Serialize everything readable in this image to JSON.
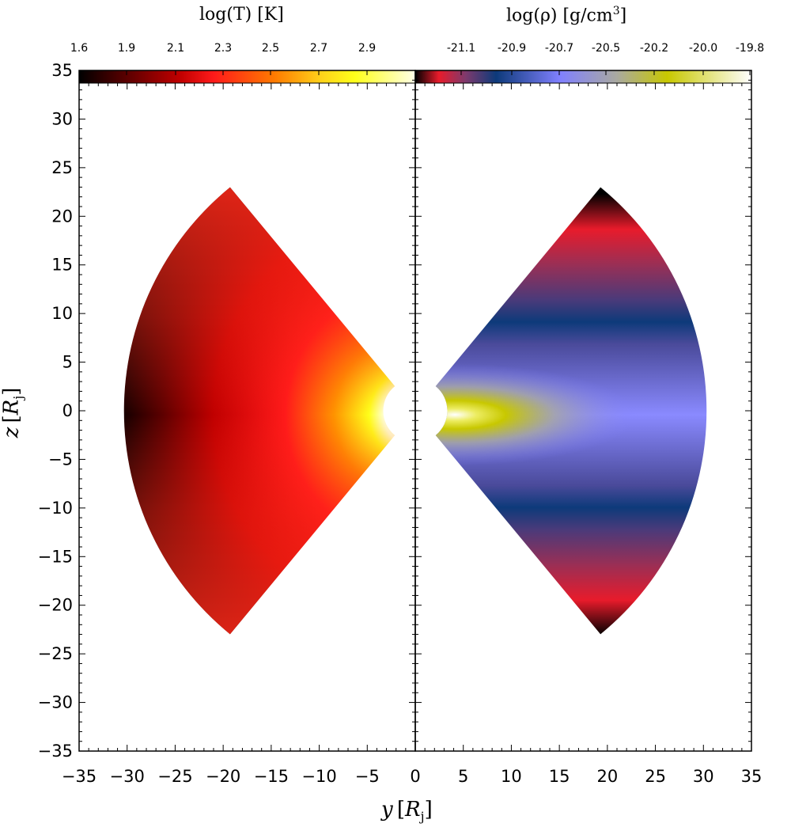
{
  "chart_data": [
    {
      "type": "heatmap",
      "panel": "left",
      "colorbar": {
        "label_func": "log(T)",
        "label_unit": "K",
        "ticks": [
          "1.6",
          "1.9",
          "2.1",
          "2.3",
          "2.5",
          "2.7",
          "2.9"
        ],
        "colormap": [
          "#000000",
          "#5a0000",
          "#c00000",
          "#ff1a1a",
          "#ff7a00",
          "#ffd21a",
          "#ffff1a",
          "#ffffe8"
        ]
      },
      "wedge": {
        "r_inner": 3.3,
        "r_outer": 30,
        "half_angle_deg": 50,
        "side": "negative"
      },
      "description_values": {
        "outer_midplane": "1.6",
        "inner_edge": "2.9"
      }
    },
    {
      "type": "heatmap",
      "panel": "right",
      "colorbar": {
        "label_func": "log(ρ)",
        "label_unit": "g/cm",
        "label_exp": "3",
        "ticks": [
          "-21.1",
          "-20.9",
          "-20.7",
          "-20.5",
          "-20.2",
          "-20.0",
          "-19.8"
        ],
        "colormap": [
          "#000000",
          "#e81b2b",
          "#7e3a6d",
          "#0d3a7a",
          "#8080ff",
          "#a9a9a0",
          "#c8c800",
          "#ffffff"
        ]
      },
      "wedge": {
        "r_inner": 3.3,
        "r_outer": 30,
        "half_angle_deg": 50,
        "side": "positive"
      }
    }
  ],
  "axes": {
    "xlabel": "y",
    "ylabel": "z",
    "label_unit_base": "R",
    "label_unit_sub": "j",
    "xlim": [
      -35,
      35
    ],
    "ylim": [
      -35,
      35
    ],
    "x_ticks": [
      "−35",
      "−30",
      "−25",
      "−20",
      "−15",
      "−10",
      "−5",
      "0",
      "5",
      "10",
      "15",
      "20",
      "25",
      "30",
      "35"
    ],
    "y_ticks": [
      "35",
      "30",
      "25",
      "20",
      "15",
      "10",
      "5",
      "0",
      "−5",
      "−10",
      "−15",
      "−20",
      "−25",
      "−30",
      "−35"
    ],
    "x_tick_values": [
      -35,
      -30,
      -25,
      -20,
      -15,
      -10,
      -5,
      0,
      5,
      10,
      15,
      20,
      25,
      30,
      35
    ],
    "y_tick_values": [
      35,
      30,
      25,
      20,
      15,
      10,
      5,
      0,
      -5,
      -10,
      -15,
      -20,
      -25,
      -30,
      -35
    ]
  }
}
